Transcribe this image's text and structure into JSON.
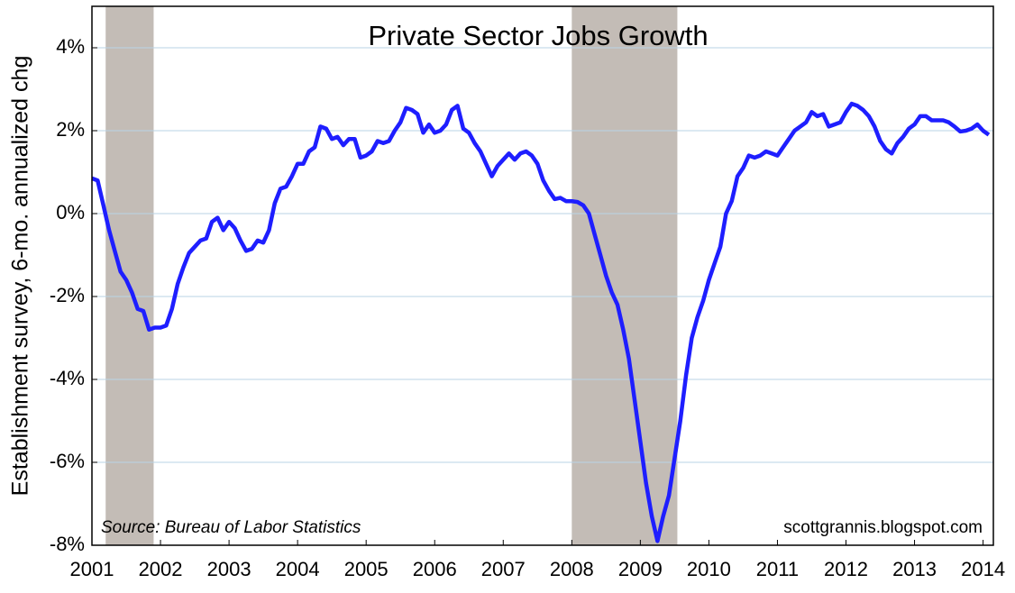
{
  "chart_data": {
    "type": "line",
    "title": "Private Sector Jobs Growth",
    "y_label": "Establishment survey, 6-mo. annualized chg",
    "annotations": [
      "Source: Bureau of Labor Statistics",
      "scottgrannis.blogspot.com"
    ],
    "xlim": [
      2001,
      2014.15
    ],
    "xticks": [
      2001,
      2002,
      2003,
      2004,
      2005,
      2006,
      2007,
      2008,
      2009,
      2010,
      2011,
      2012,
      2013,
      2014
    ],
    "ylim": [
      -8,
      5
    ],
    "yticks": [
      {
        "value": -8,
        "label": "-8%"
      },
      {
        "value": -6,
        "label": "-6%"
      },
      {
        "value": -4,
        "label": "-4%"
      },
      {
        "value": -2,
        "label": "-2%"
      },
      {
        "value": 0,
        "label": "0%"
      },
      {
        "value": 2,
        "label": "2%"
      },
      {
        "value": 4,
        "label": "4%"
      }
    ],
    "grid": true,
    "shaded_periods": [
      [
        2001.2,
        2001.9
      ],
      [
        2008.0,
        2009.54
      ]
    ],
    "shade_color": "#c3bcb6",
    "x": [
      2001.0,
      2001.083,
      2001.167,
      2001.25,
      2001.333,
      2001.417,
      2001.5,
      2001.583,
      2001.667,
      2001.75,
      2001.833,
      2001.917,
      2002.0,
      2002.083,
      2002.167,
      2002.25,
      2002.333,
      2002.417,
      2002.5,
      2002.583,
      2002.667,
      2002.75,
      2002.833,
      2002.917,
      2003.0,
      2003.083,
      2003.167,
      2003.25,
      2003.333,
      2003.417,
      2003.5,
      2003.583,
      2003.667,
      2003.75,
      2003.833,
      2003.917,
      2004.0,
      2004.083,
      2004.167,
      2004.25,
      2004.333,
      2004.417,
      2004.5,
      2004.583,
      2004.667,
      2004.75,
      2004.833,
      2004.917,
      2005.0,
      2005.083,
      2005.167,
      2005.25,
      2005.333,
      2005.417,
      2005.5,
      2005.583,
      2005.667,
      2005.75,
      2005.833,
      2005.917,
      2006.0,
      2006.083,
      2006.167,
      2006.25,
      2006.333,
      2006.417,
      2006.5,
      2006.583,
      2006.667,
      2006.75,
      2006.833,
      2006.917,
      2007.0,
      2007.083,
      2007.167,
      2007.25,
      2007.333,
      2007.417,
      2007.5,
      2007.583,
      2007.667,
      2007.75,
      2007.833,
      2007.917,
      2008.0,
      2008.083,
      2008.167,
      2008.25,
      2008.333,
      2008.417,
      2008.5,
      2008.583,
      2008.667,
      2008.75,
      2008.833,
      2008.917,
      2009.0,
      2009.083,
      2009.167,
      2009.25,
      2009.333,
      2009.417,
      2009.5,
      2009.583,
      2009.667,
      2009.75,
      2009.833,
      2009.917,
      2010.0,
      2010.083,
      2010.167,
      2010.25,
      2010.333,
      2010.417,
      2010.5,
      2010.583,
      2010.667,
      2010.75,
      2010.833,
      2010.917,
      2011.0,
      2011.083,
      2011.167,
      2011.25,
      2011.333,
      2011.417,
      2011.5,
      2011.583,
      2011.667,
      2011.75,
      2011.833,
      2011.917,
      2012.0,
      2012.083,
      2012.167,
      2012.25,
      2012.333,
      2012.417,
      2012.5,
      2012.583,
      2012.667,
      2012.75,
      2012.833,
      2012.917,
      2013.0,
      2013.083,
      2013.167,
      2013.25,
      2013.333,
      2013.417,
      2013.5,
      2013.583,
      2013.667,
      2013.75,
      2013.833,
      2013.917,
      2014.0,
      2014.083
    ],
    "series": [
      {
        "name": "Private Sector Jobs Growth",
        "color": "#1e1eff",
        "values": [
          0.85,
          0.8,
          0.2,
          -0.4,
          -0.9,
          -1.4,
          -1.6,
          -1.9,
          -2.3,
          -2.35,
          -2.8,
          -2.75,
          -2.75,
          -2.7,
          -2.3,
          -1.7,
          -1.3,
          -0.95,
          -0.8,
          -0.65,
          -0.6,
          -0.2,
          -0.1,
          -0.4,
          -0.2,
          -0.35,
          -0.65,
          -0.9,
          -0.85,
          -0.65,
          -0.7,
          -0.4,
          0.25,
          0.6,
          0.65,
          0.9,
          1.2,
          1.2,
          1.5,
          1.6,
          2.1,
          2.05,
          1.8,
          1.85,
          1.65,
          1.8,
          1.8,
          1.35,
          1.4,
          1.5,
          1.75,
          1.7,
          1.75,
          2.0,
          2.2,
          2.55,
          2.5,
          2.4,
          1.95,
          2.15,
          1.95,
          2.0,
          2.15,
          2.5,
          2.6,
          2.05,
          1.95,
          1.7,
          1.5,
          1.2,
          0.9,
          1.15,
          1.3,
          1.45,
          1.3,
          1.45,
          1.5,
          1.4,
          1.2,
          0.8,
          0.55,
          0.35,
          0.38,
          0.3,
          0.3,
          0.28,
          0.2,
          0.0,
          -0.5,
          -1.0,
          -1.5,
          -1.9,
          -2.2,
          -2.8,
          -3.5,
          -4.5,
          -5.5,
          -6.5,
          -7.3,
          -7.9,
          -7.3,
          -6.8,
          -5.9,
          -5.0,
          -3.9,
          -3.0,
          -2.5,
          -2.1,
          -1.6,
          -1.2,
          -0.8,
          0.0,
          0.3,
          0.9,
          1.1,
          1.4,
          1.35,
          1.4,
          1.5,
          1.45,
          1.4,
          1.6,
          1.8,
          2.0,
          2.1,
          2.2,
          2.45,
          2.35,
          2.4,
          2.1,
          2.15,
          2.2,
          2.45,
          2.65,
          2.6,
          2.5,
          2.35,
          2.1,
          1.75,
          1.55,
          1.45,
          1.7,
          1.85,
          2.05,
          2.15,
          2.35,
          2.35,
          2.25,
          2.25,
          2.25,
          2.2,
          2.1,
          1.98,
          2.0,
          2.05,
          2.15,
          2.0,
          1.9
        ]
      }
    ]
  }
}
